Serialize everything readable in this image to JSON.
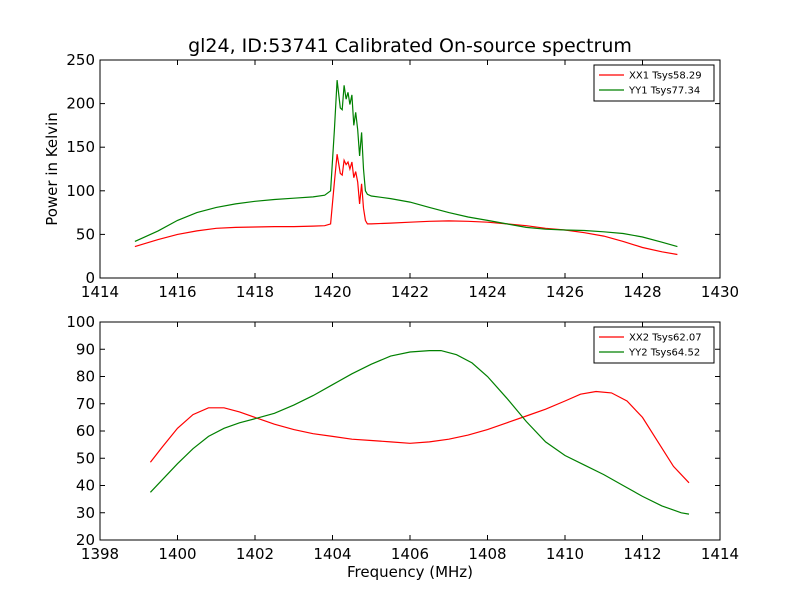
{
  "figure": {
    "title": "gl24, ID:53741 Calibrated On-source spectrum",
    "xlabel": "Frequency (MHz)",
    "ylabel": "Power in Kelvin"
  },
  "chart_data": [
    {
      "type": "line",
      "title": "gl24, ID:53741 Calibrated On-source spectrum",
      "xlabel": "",
      "ylabel": "Power in Kelvin",
      "xlim": [
        1414,
        1430
      ],
      "ylim": [
        0,
        250
      ],
      "xticks": [
        "1414",
        "1416",
        "1418",
        "1420",
        "1422",
        "1424",
        "1426",
        "1428",
        "1430"
      ],
      "yticks": [
        "0",
        "50",
        "100",
        "150",
        "200",
        "250"
      ],
      "legend_position": "top-right",
      "grid": false,
      "series": [
        {
          "name": "XX1 Tsys58.29",
          "color": "#ff0000",
          "x": [
            1414.9,
            1415.5,
            1416.0,
            1416.5,
            1417.0,
            1417.5,
            1418.0,
            1418.5,
            1419.0,
            1419.5,
            1419.8,
            1419.95,
            1420.05,
            1420.12,
            1420.2,
            1420.25,
            1420.3,
            1420.35,
            1420.4,
            1420.45,
            1420.5,
            1420.55,
            1420.6,
            1420.65,
            1420.7,
            1420.75,
            1420.8,
            1420.85,
            1420.9,
            1421.0,
            1421.5,
            1422.0,
            1422.5,
            1423.0,
            1423.5,
            1424.0,
            1424.5,
            1425.0,
            1425.5,
            1426.0,
            1426.5,
            1427.0,
            1427.5,
            1428.0,
            1428.5,
            1428.9
          ],
          "values": [
            36,
            44,
            50,
            54,
            57,
            58,
            58.5,
            59,
            59,
            59.5,
            60,
            62,
            110,
            142,
            120,
            118,
            135,
            130,
            133,
            125,
            133,
            115,
            122,
            110,
            85,
            108,
            80,
            66,
            62,
            62,
            63,
            64,
            65,
            65.5,
            65,
            64,
            62,
            60,
            57,
            55,
            52,
            48,
            42,
            35,
            30,
            27
          ]
        },
        {
          "name": "YY1 Tsys77.34",
          "color": "#008000",
          "x": [
            1414.9,
            1415.5,
            1416.0,
            1416.5,
            1417.0,
            1417.5,
            1418.0,
            1418.5,
            1419.0,
            1419.5,
            1419.8,
            1419.95,
            1420.05,
            1420.12,
            1420.2,
            1420.25,
            1420.3,
            1420.35,
            1420.4,
            1420.45,
            1420.5,
            1420.55,
            1420.6,
            1420.65,
            1420.7,
            1420.75,
            1420.8,
            1420.85,
            1420.9,
            1421.0,
            1421.5,
            1422.0,
            1422.5,
            1423.0,
            1423.5,
            1424.0,
            1424.5,
            1425.0,
            1425.5,
            1426.0,
            1426.5,
            1427.0,
            1427.5,
            1428.0,
            1428.5,
            1428.9
          ],
          "values": [
            42,
            54,
            66,
            75,
            81,
            85,
            88,
            90,
            91.5,
            93,
            95,
            100,
            170,
            227,
            195,
            193,
            221,
            205,
            213,
            199,
            210,
            175,
            190,
            170,
            140,
            167,
            125,
            100,
            96,
            94,
            91,
            87,
            81,
            75,
            70,
            66,
            62,
            58,
            56,
            55,
            54.5,
            53,
            51,
            47,
            41,
            36
          ]
        }
      ]
    },
    {
      "type": "line",
      "title": "",
      "xlabel": "Frequency (MHz)",
      "ylabel": "",
      "xlim": [
        1398,
        1414
      ],
      "ylim": [
        20,
        100
      ],
      "xticks": [
        "1398",
        "1400",
        "1402",
        "1404",
        "1406",
        "1408",
        "1410",
        "1412",
        "1414"
      ],
      "yticks": [
        "20",
        "30",
        "40",
        "50",
        "60",
        "70",
        "80",
        "90",
        "100"
      ],
      "legend_position": "top-right",
      "grid": false,
      "series": [
        {
          "name": "XX2 Tsys62.07",
          "color": "#ff0000",
          "x": [
            1399.3,
            1399.6,
            1400.0,
            1400.4,
            1400.8,
            1401.2,
            1401.6,
            1402.0,
            1402.5,
            1403.0,
            1403.5,
            1404.0,
            1404.5,
            1405.0,
            1405.5,
            1406.0,
            1406.5,
            1407.0,
            1407.5,
            1408.0,
            1408.5,
            1409.0,
            1409.5,
            1410.0,
            1410.4,
            1410.8,
            1411.2,
            1411.6,
            1412.0,
            1412.4,
            1412.8,
            1413.2
          ],
          "values": [
            48.5,
            54,
            61,
            66,
            68.5,
            68.5,
            67,
            65,
            62.5,
            60.5,
            59,
            58,
            57,
            56.5,
            56,
            55.5,
            56,
            57,
            58.5,
            60.5,
            63,
            65.5,
            68,
            71,
            73.5,
            74.5,
            74,
            71,
            65,
            56,
            47,
            41
          ]
        },
        {
          "name": "YY2 Tsys64.52",
          "color": "#008000",
          "x": [
            1399.3,
            1399.6,
            1400.0,
            1400.4,
            1400.8,
            1401.2,
            1401.6,
            1402.0,
            1402.5,
            1403.0,
            1403.5,
            1404.0,
            1404.5,
            1405.0,
            1405.5,
            1406.0,
            1406.5,
            1406.8,
            1407.2,
            1407.6,
            1408.0,
            1408.5,
            1409.0,
            1409.5,
            1410.0,
            1410.5,
            1411.0,
            1411.5,
            1412.0,
            1412.5,
            1413.0,
            1413.2
          ],
          "values": [
            37.5,
            42,
            48,
            53.5,
            58,
            61,
            63,
            64.5,
            66.5,
            69.5,
            73,
            77,
            81,
            84.5,
            87.5,
            89,
            89.5,
            89.5,
            88,
            85,
            80,
            72,
            63.5,
            56,
            51,
            47.5,
            44,
            40,
            36,
            32.5,
            30,
            29.5
          ]
        }
      ]
    }
  ]
}
